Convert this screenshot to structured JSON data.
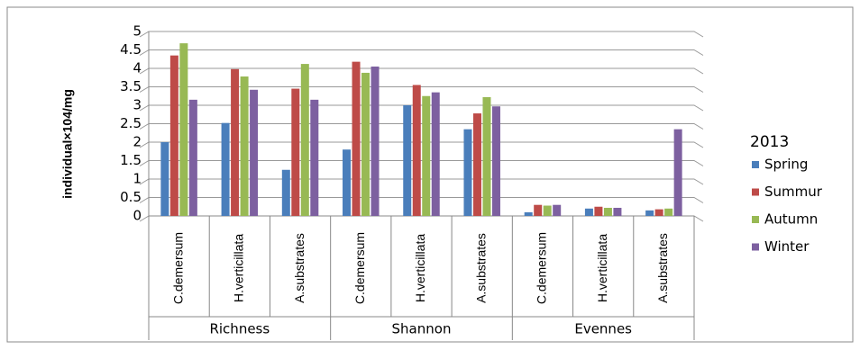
{
  "chart_data": {
    "type": "bar",
    "y_label": "individual×104/mg",
    "groups": [
      {
        "label": "Richness",
        "categories": [
          "C.demersum",
          "H.verticillata",
          "A.substrates"
        ]
      },
      {
        "label": "Shannon",
        "categories": [
          "C.demersum",
          "H.verticillata",
          "A.substrates"
        ]
      },
      {
        "label": "Evennes",
        "categories": [
          "C.demersum",
          "H.verticillata",
          "A.substrates"
        ]
      }
    ],
    "legend_title": "2013",
    "series": [
      {
        "name": "Spring",
        "color": "#4a7ebb",
        "values": [
          2.0,
          2.52,
          1.25,
          1.8,
          3.0,
          2.35,
          0.1,
          0.2,
          0.15
        ]
      },
      {
        "name": "Summur",
        "color": "#be4b48",
        "values": [
          4.35,
          3.98,
          3.45,
          4.18,
          3.55,
          2.78,
          0.3,
          0.25,
          0.18
        ]
      },
      {
        "name": "Autumn",
        "color": "#98b954",
        "values": [
          4.68,
          3.78,
          4.12,
          3.88,
          3.25,
          3.22,
          0.28,
          0.22,
          0.2
        ]
      },
      {
        "name": "Winter",
        "color": "#7d60a0",
        "values": [
          3.15,
          3.42,
          3.15,
          4.05,
          3.35,
          2.97,
          0.3,
          0.22,
          2.35
        ]
      }
    ],
    "ylim": [
      0,
      5
    ],
    "yticks": [
      0,
      0.5,
      1,
      1.5,
      2,
      2.5,
      3,
      3.5,
      4,
      4.5,
      5
    ],
    "grid": true,
    "legend": "right"
  }
}
